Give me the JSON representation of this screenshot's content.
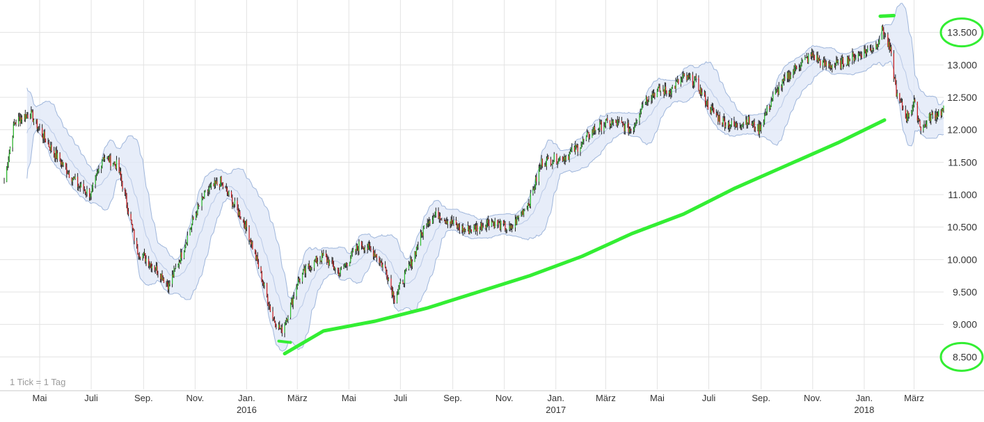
{
  "chart_data": {
    "type": "line",
    "title": "",
    "xlabel": "",
    "ylabel": "",
    "note": "1 Tick = 1 Tag",
    "ylim": [
      8000,
      14000
    ],
    "xlim": [
      "2015-03-20",
      "2018-04-05"
    ],
    "grid": true,
    "y_ticks": [
      "8.500",
      "9.000",
      "9.500",
      "10.000",
      "10.500",
      "11.000",
      "11.500",
      "12.000",
      "12.500",
      "13.000",
      "13.500"
    ],
    "y_tick_values": [
      8500,
      9000,
      9500,
      10000,
      10500,
      11000,
      11500,
      12000,
      12500,
      13000,
      13500
    ],
    "highlighted_y_ticks": [
      "13.500",
      "8.500"
    ],
    "x_ticks": [
      {
        "label": "Mai",
        "year": "",
        "date": "2015-05-01"
      },
      {
        "label": "Juli",
        "year": "",
        "date": "2015-07-01"
      },
      {
        "label": "Sep.",
        "year": "",
        "date": "2015-09-01"
      },
      {
        "label": "Nov.",
        "year": "",
        "date": "2015-11-01"
      },
      {
        "label": "Jan.",
        "year": "2016",
        "date": "2016-01-01"
      },
      {
        "label": "März",
        "year": "",
        "date": "2016-03-01"
      },
      {
        "label": "Mai",
        "year": "",
        "date": "2016-05-01"
      },
      {
        "label": "Juli",
        "year": "",
        "date": "2016-07-01"
      },
      {
        "label": "Sep.",
        "year": "",
        "date": "2016-09-01"
      },
      {
        "label": "Nov.",
        "year": "",
        "date": "2016-11-01"
      },
      {
        "label": "Jan.",
        "year": "2017",
        "date": "2017-01-01"
      },
      {
        "label": "März",
        "year": "",
        "date": "2017-03-01"
      },
      {
        "label": "Mai",
        "year": "",
        "date": "2017-05-01"
      },
      {
        "label": "Juli",
        "year": "",
        "date": "2017-07-01"
      },
      {
        "label": "Sep.",
        "year": "",
        "date": "2017-09-01"
      },
      {
        "label": "Nov.",
        "year": "",
        "date": "2017-11-01"
      },
      {
        "label": "Jan.",
        "year": "2018",
        "date": "2018-01-01"
      },
      {
        "label": "März",
        "year": "",
        "date": "2018-03-01"
      }
    ],
    "series": [
      {
        "name": "",
        "kind": "price",
        "x": [
          "2015-03-20",
          "2015-04-01",
          "2015-04-10",
          "2015-04-20",
          "2015-05-01",
          "2015-05-15",
          "2015-06-01",
          "2015-06-15",
          "2015-07-01",
          "2015-07-15",
          "2015-08-01",
          "2015-08-10",
          "2015-08-24",
          "2015-09-05",
          "2015-09-20",
          "2015-10-01",
          "2015-10-15",
          "2015-11-01",
          "2015-11-15",
          "2015-12-01",
          "2015-12-15",
          "2016-01-01",
          "2016-01-15",
          "2016-02-01",
          "2016-02-11",
          "2016-02-20",
          "2016-03-01",
          "2016-03-15",
          "2016-04-01",
          "2016-04-20",
          "2016-05-01",
          "2016-05-15",
          "2016-06-01",
          "2016-06-15",
          "2016-06-24",
          "2016-07-01",
          "2016-07-15",
          "2016-08-01",
          "2016-08-15",
          "2016-09-01",
          "2016-09-15",
          "2016-10-01",
          "2016-10-15",
          "2016-11-01",
          "2016-11-08",
          "2016-11-20",
          "2016-12-01",
          "2016-12-15",
          "2017-01-01",
          "2017-01-15",
          "2017-02-01",
          "2017-02-15",
          "2017-03-01",
          "2017-03-15",
          "2017-04-01",
          "2017-04-15",
          "2017-05-01",
          "2017-05-15",
          "2017-06-01",
          "2017-06-15",
          "2017-07-01",
          "2017-07-15",
          "2017-08-01",
          "2017-08-15",
          "2017-08-29",
          "2017-09-15",
          "2017-10-01",
          "2017-10-15",
          "2017-11-01",
          "2017-11-15",
          "2017-12-01",
          "2017-12-15",
          "2018-01-01",
          "2018-01-15",
          "2018-01-23",
          "2018-02-01",
          "2018-02-09",
          "2018-02-20",
          "2018-03-01",
          "2018-03-10",
          "2018-03-20",
          "2018-04-05"
        ],
        "y": [
          11200,
          12100,
          12200,
          12250,
          12000,
          11700,
          11400,
          11150,
          11000,
          11600,
          11450,
          11000,
          10150,
          10000,
          9800,
          9600,
          10050,
          10700,
          11050,
          11200,
          10900,
          10500,
          9900,
          9100,
          8900,
          9200,
          9650,
          9900,
          10050,
          9800,
          10000,
          10250,
          10100,
          9800,
          9400,
          9600,
          10000,
          10600,
          10700,
          10550,
          10450,
          10500,
          10600,
          10500,
          10450,
          10700,
          10900,
          11500,
          11550,
          11600,
          11800,
          12000,
          12100,
          12100,
          12000,
          12450,
          12600,
          12600,
          12800,
          12750,
          12350,
          12150,
          12050,
          12150,
          12000,
          12500,
          12800,
          13000,
          13150,
          13000,
          13000,
          13100,
          13200,
          13300,
          13550,
          13200,
          12500,
          12200,
          12400,
          12000,
          12200,
          12300
        ]
      },
      {
        "name": "",
        "kind": "trend",
        "color": "#33ee33",
        "x": [
          "2016-02-15",
          "2016-04-01",
          "2016-06-01",
          "2016-08-01",
          "2016-10-01",
          "2016-12-01",
          "2017-02-01",
          "2017-04-01",
          "2017-06-01",
          "2017-08-01",
          "2017-10-01",
          "2017-12-01",
          "2018-01-25"
        ],
        "y": [
          8550,
          8900,
          9050,
          9250,
          9500,
          9750,
          10050,
          10400,
          10700,
          11100,
          11450,
          11800,
          12150
        ]
      }
    ]
  }
}
